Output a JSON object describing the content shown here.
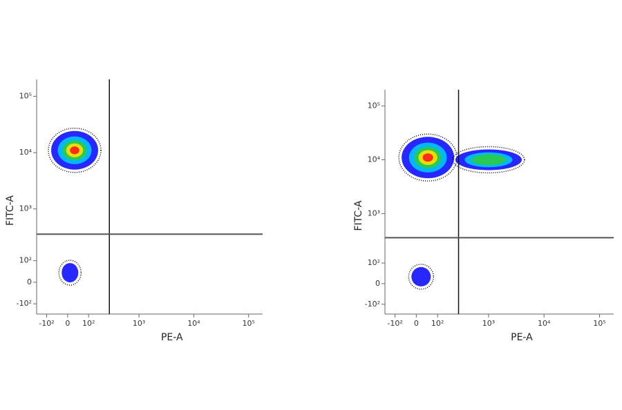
{
  "chart_data": [
    {
      "type": "density",
      "scale": "biexponential",
      "x_label": "PE-A",
      "y_label": "FITC-A",
      "x": [
        30,
        10
      ],
      "y": [
        11000,
        40
      ],
      "xlim": [
        -170,
        180000
      ],
      "ylim": [
        -170,
        200000
      ],
      "xticks": [
        {
          "value": -100,
          "label": "-10²"
        },
        0,
        {
          "value": 100,
          "label": "10²"
        },
        {
          "value": 1000,
          "label": "10³"
        },
        {
          "value": 10000,
          "label": "10⁴"
        },
        {
          "value": 100000,
          "label": "10⁵"
        }
      ],
      "yticks": [
        {
          "value": -100,
          "label": "-10²"
        },
        0,
        {
          "value": 100,
          "label": "10²"
        },
        {
          "value": 1000,
          "label": "10³"
        },
        {
          "value": 10000,
          "label": "10⁴"
        },
        {
          "value": 100000,
          "label": "10⁵"
        }
      ],
      "x_gate": 280,
      "y_gate": 350
    },
    {
      "type": "density",
      "scale": "biexponential",
      "x_label": "PE-A",
      "y_label": "FITC-A",
      "x": [
        50,
        1000,
        20
      ],
      "y": [
        11000,
        10000,
        30
      ],
      "xlim": [
        -170,
        180000
      ],
      "ylim": [
        -170,
        200000
      ],
      "xticks": [
        {
          "value": -100,
          "label": "-10²"
        },
        0,
        {
          "value": 100,
          "label": "10²"
        },
        {
          "value": 1000,
          "label": "10³"
        },
        {
          "value": 10000,
          "label": "10⁴"
        },
        {
          "value": 100000,
          "label": "10⁵"
        }
      ],
      "yticks": [
        {
          "value": -100,
          "label": "-10²"
        },
        0,
        {
          "value": 100,
          "label": "10²"
        },
        {
          "value": 1000,
          "label": "10³"
        },
        {
          "value": 10000,
          "label": "10⁴"
        },
        {
          "value": 100000,
          "label": "10⁵"
        }
      ],
      "x_gate": 280,
      "y_gate": 350
    }
  ]
}
